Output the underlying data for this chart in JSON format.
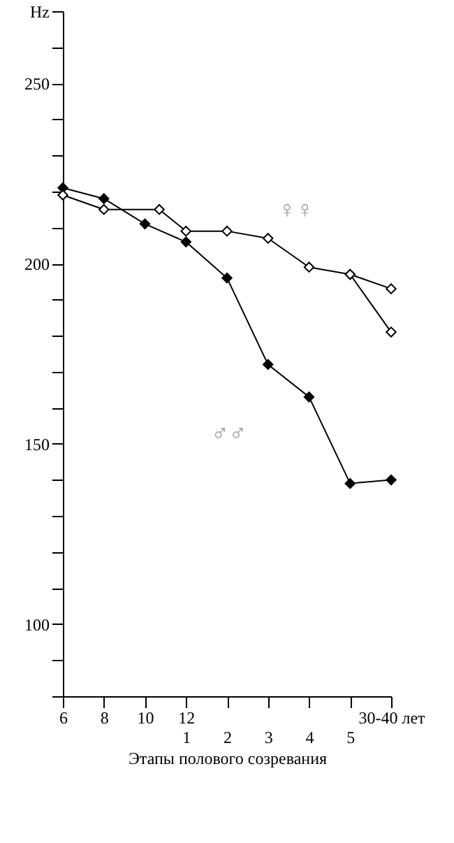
{
  "chart_data": {
    "type": "line",
    "xlabel": null,
    "x2label": "Этапы полового созревания",
    "xlim": [
      6,
      22
    ],
    "xticks": [
      6,
      8,
      10,
      12,
      {
        "value": 14,
        "label": null
      },
      {
        "value": 16,
        "label": null
      },
      {
        "value": 18,
        "label": null
      },
      {
        "value": 20,
        "label": null
      },
      {
        "value": 22,
        "label": "30-40 лет"
      }
    ],
    "x2lim": [
      -2,
      6
    ],
    "x2ticks": [
      1,
      2,
      3,
      4,
      5
    ],
    "ylim": [
      80,
      270
    ],
    "yticks": [
      {
        "value": 80,
        "label": null
      },
      {
        "value": 90,
        "label": null
      },
      100,
      {
        "value": 110,
        "label": null
      },
      {
        "value": 120,
        "label": null
      },
      {
        "value": 130,
        "label": null
      },
      {
        "value": 140,
        "label": null
      },
      150,
      {
        "value": 160,
        "label": null
      },
      {
        "value": 170,
        "label": null
      },
      {
        "value": 180,
        "label": null
      },
      {
        "value": 190,
        "label": null
      },
      200,
      {
        "value": 210,
        "label": null
      },
      {
        "value": 220,
        "label": null
      },
      {
        "value": 230,
        "label": null
      },
      {
        "value": 240,
        "label": null
      },
      250,
      {
        "value": 260,
        "label": null
      },
      {
        "value": 270,
        "label": "Hz"
      }
    ],
    "marker": "diamond",
    "line_style": "solid",
    "grid": false,
    "series": [
      {
        "name": "♂♂",
        "color": "#000000",
        "x": [
          6,
          8,
          10,
          12,
          14,
          16,
          18,
          20,
          22
        ],
        "values": [
          221,
          218,
          211,
          206,
          196,
          172,
          163,
          139,
          140
        ]
      },
      {
        "name": "♀♀",
        "color": "#000000",
        "x": [
          6,
          8,
          10.7,
          12,
          14,
          16,
          18,
          20,
          22
        ],
        "values": [
          219,
          215,
          215,
          209,
          209,
          207,
          199,
          197,
          193
        ]
      },
      {
        "color": "#000000",
        "x": [
          20,
          22
        ],
        "values": [
          197,
          181
        ]
      }
    ]
  }
}
